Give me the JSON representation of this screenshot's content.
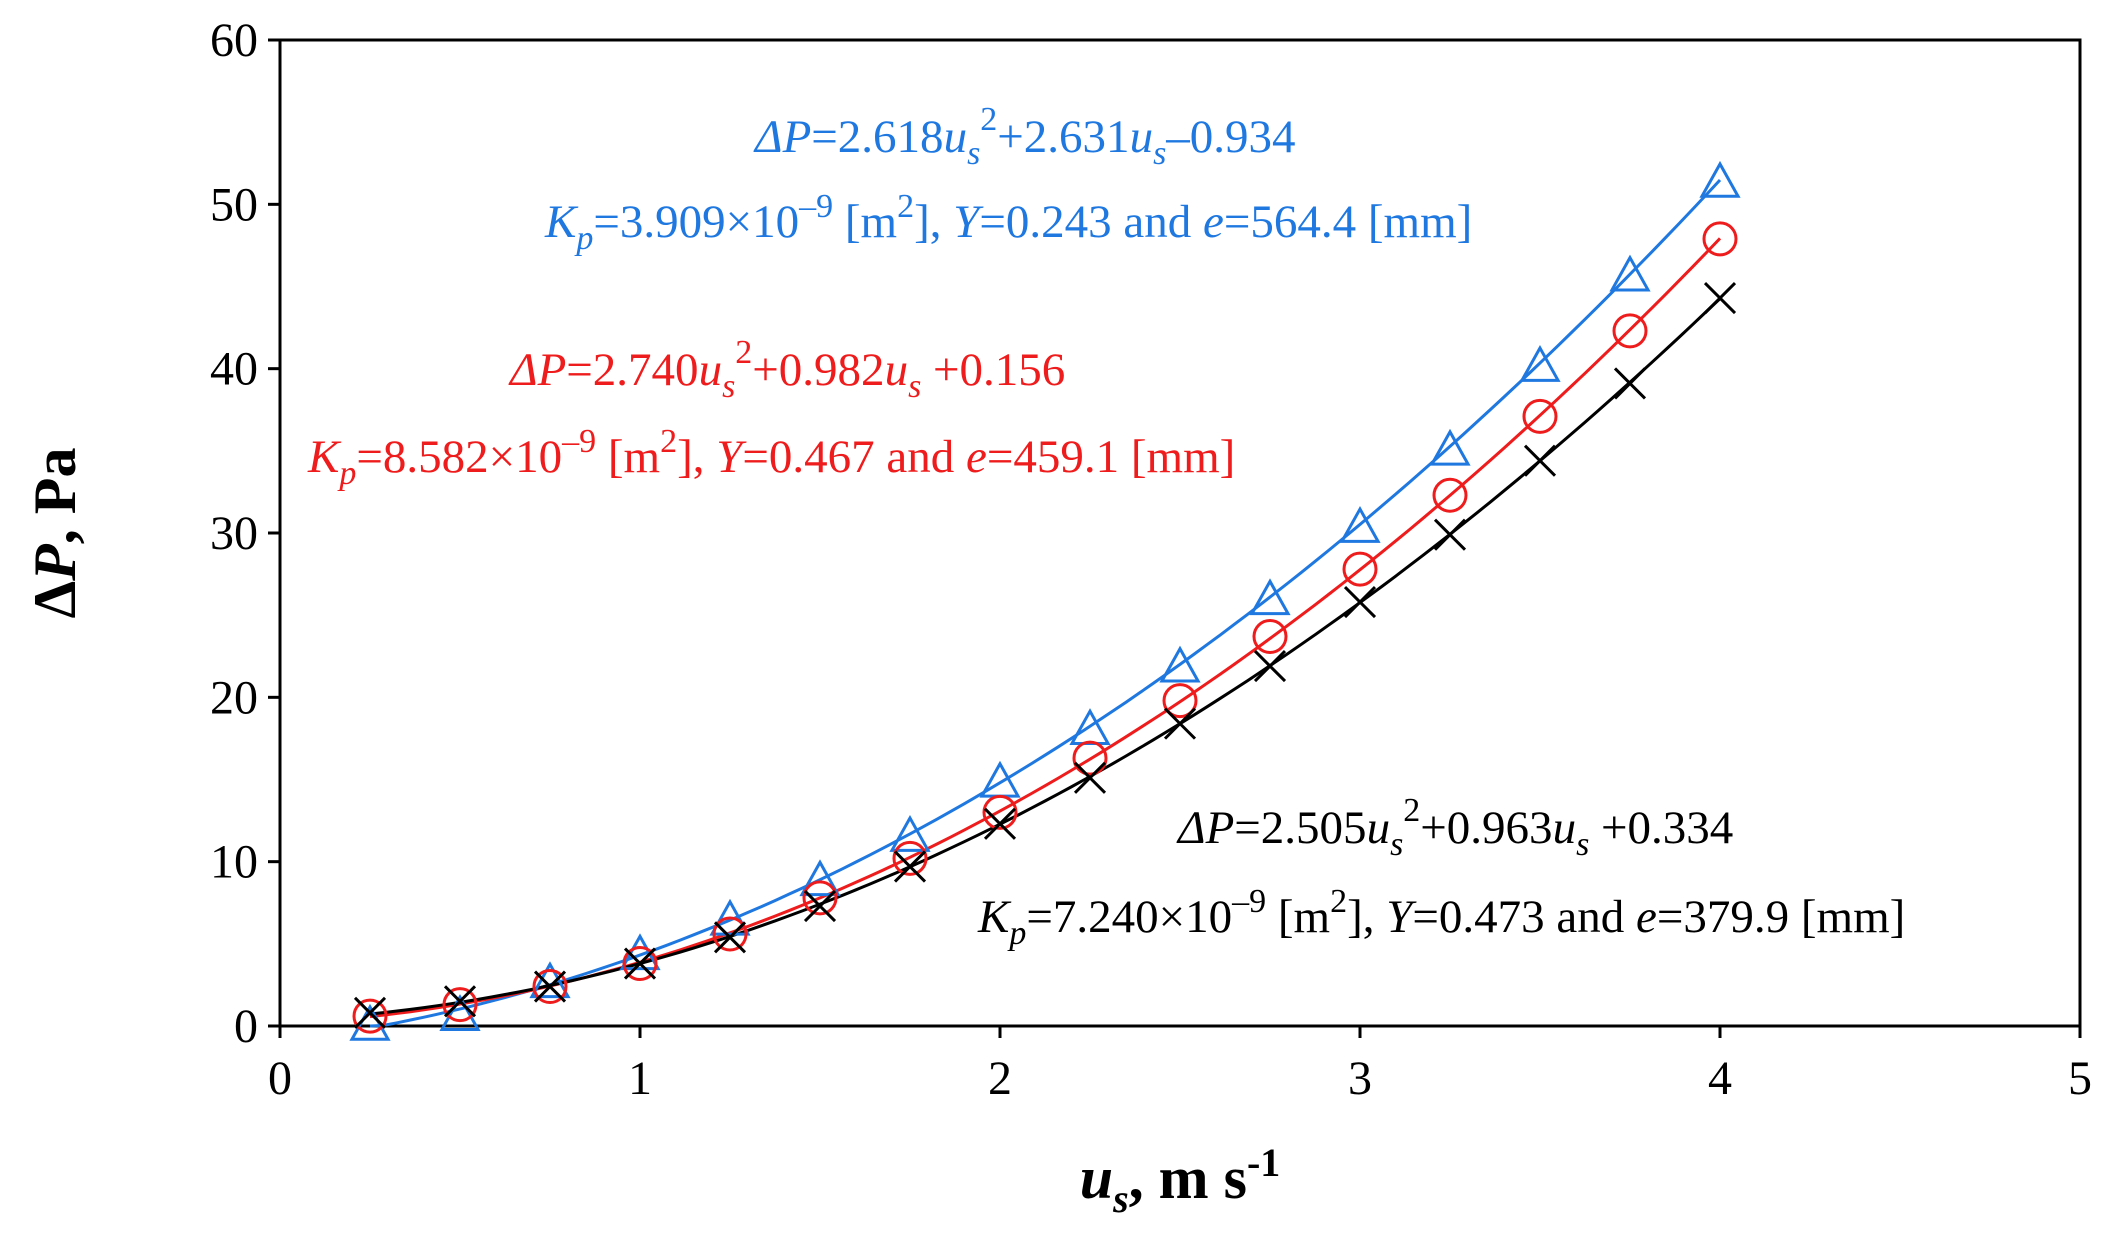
{
  "chart_data": {
    "type": "scatter",
    "title": "",
    "xlabel": "u_s, m s-1",
    "ylabel": "ΔP, Pa",
    "x_label_parts": {
      "sym": "u",
      "sub": "s",
      "text": ", m s",
      "sup": "-1"
    },
    "y_label_parts": {
      "delta": "Δ",
      "sym": "P",
      "text": ", Pa"
    },
    "xlim": [
      0,
      5
    ],
    "ylim": [
      0,
      60
    ],
    "x_ticks": [
      "0",
      "1",
      "2",
      "3",
      "4",
      "5"
    ],
    "y_ticks": [
      "0",
      "10",
      "20",
      "30",
      "40",
      "50",
      "60"
    ],
    "grid": false,
    "x": [
      0.25,
      0.5,
      0.75,
      1.0,
      1.25,
      1.5,
      1.75,
      2.0,
      2.25,
      2.5,
      2.75,
      3.0,
      3.25,
      3.5,
      3.75,
      4.0
    ],
    "series": [
      {
        "name": "blue",
        "color": "#1f78e0",
        "marker": "triangle",
        "values": [
          0.0,
          0.6,
          2.6,
          4.3,
          6.4,
          8.8,
          11.5,
          14.8,
          18.0,
          21.8,
          25.9,
          30.3,
          35.0,
          40.1,
          45.6,
          51.3
        ],
        "fit": {
          "a": 2.618,
          "b": 2.631,
          "c": -0.934
        },
        "equation": {
          "lhs": "ΔP",
          "a": "=2.618",
          "u": "u",
          "s": "s",
          "sq": "2",
          "b": "+2.631",
          "c": "–0.934"
        },
        "params": {
          "k": "K",
          "p": "p",
          "kval": "=3.909×10",
          "exp": "–9",
          "unit1": " [m",
          "sq": "2",
          "unit1b": "], ",
          "y": "Y",
          "yval": "=0.243 and ",
          "e": "e",
          "eval": "=564.4 [mm]"
        }
      },
      {
        "name": "red",
        "color": "#ee1c1c",
        "marker": "circle",
        "values": [
          0.6,
          1.3,
          2.4,
          3.8,
          5.6,
          7.8,
          10.2,
          13.0,
          16.3,
          19.8,
          23.7,
          27.8,
          32.3,
          37.1,
          42.3,
          47.9
        ],
        "fit": {
          "a": 2.74,
          "b": 0.982,
          "c": 0.156
        },
        "equation": {
          "lhs": "ΔP",
          "a": "=2.740",
          "u": "u",
          "s": "s",
          "sq": "2",
          "b": "+0.982",
          "c": " +0.156"
        },
        "params": {
          "k": "K",
          "p": "p",
          "kval": "=8.582×10",
          "exp": "–9",
          "unit1": " [m",
          "sq": "2",
          "unit1b": "], ",
          "y": "Y",
          "yval": "=0.467 and ",
          "e": "e",
          "eval": "=459.1 [mm]"
        }
      },
      {
        "name": "black",
        "color": "#000000",
        "marker": "x",
        "values": [
          0.8,
          1.5,
          2.4,
          3.8,
          5.4,
          7.3,
          9.7,
          12.3,
          15.1,
          18.4,
          21.9,
          25.8,
          29.9,
          34.4,
          39.1,
          44.3
        ],
        "fit": {
          "a": 2.505,
          "b": 0.963,
          "c": 0.334
        },
        "equation": {
          "lhs": "ΔP",
          "a": "=2.505",
          "u": "u",
          "s": "s",
          "sq": "2",
          "b": "+0.963",
          "c": " +0.334"
        },
        "params": {
          "k": "K",
          "p": "p",
          "kval": "=7.240×10",
          "exp": "–9",
          "unit1": " [m",
          "sq": "2",
          "unit1b": "], ",
          "y": "Y",
          "yval": "=0.473 and ",
          "e": "e",
          "eval": "=379.9 [mm]"
        }
      }
    ]
  }
}
